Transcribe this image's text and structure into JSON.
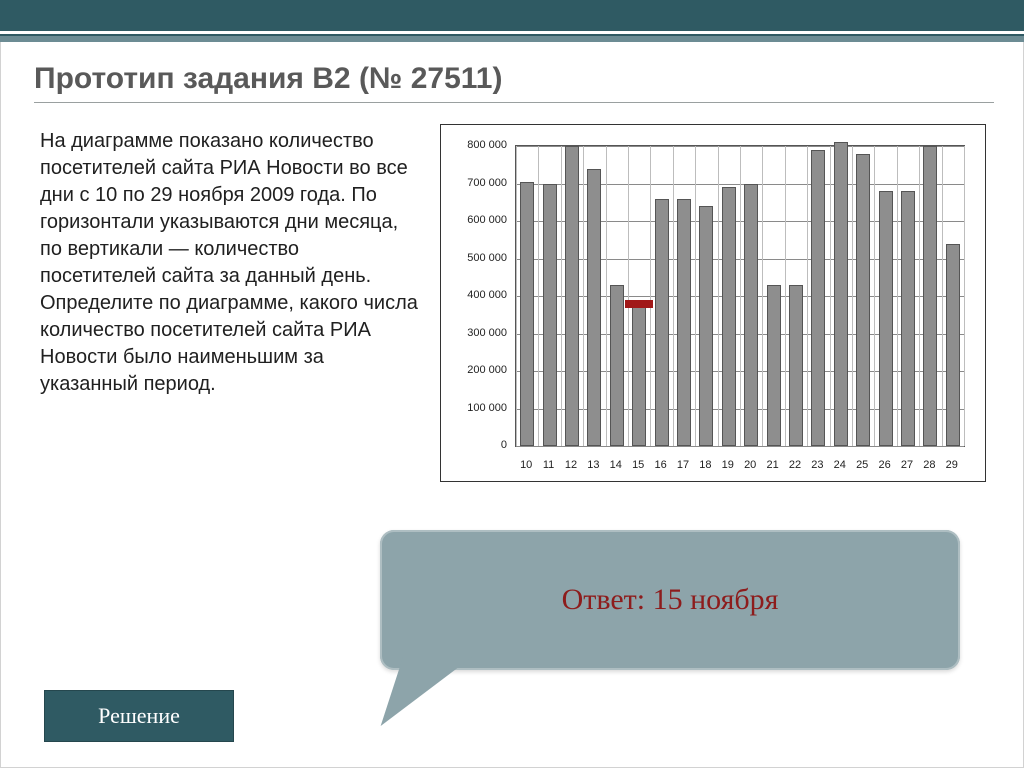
{
  "title": "Прототип задания B2 (№ 27511)",
  "paragraph": "На диаграмме показано количество посетителей сайта РИА Новости во все дни с 10 по 29 ноября 2009 года. По горизонтали указываются дни месяца, по вертикали — количество посетителей сайта за данный день. Определите по диаграмме, какого числа количество посетителей сайта РИА Новости было наименьшим за указанный период.",
  "answer_label": "Ответ: 15 ноября",
  "solution_button": "Решение",
  "chart": {
    "type": "bar",
    "ymin": 0,
    "ymax": 800000,
    "ytick_step": 100000,
    "yticks": [
      "0",
      "100 000",
      "200 000",
      "300 000",
      "400 000",
      "500 000",
      "600 000",
      "700 000",
      "800 000"
    ],
    "x_labels": [
      "10",
      "11",
      "12",
      "13",
      "14",
      "15",
      "16",
      "17",
      "18",
      "19",
      "20",
      "21",
      "22",
      "23",
      "24",
      "25",
      "26",
      "27",
      "28",
      "29"
    ],
    "values": [
      705000,
      700000,
      800000,
      740000,
      430000,
      390000,
      660000,
      660000,
      640000,
      690000,
      700000,
      430000,
      430000,
      790000,
      810000,
      780000,
      680000,
      680000,
      800000,
      540000
    ],
    "bar_fill": "#8e8e8e",
    "bar_border": "#555555",
    "grid_color": "#8a8a8a",
    "vgrid_color": "#bdbdbd",
    "background_color": "#ffffff",
    "bar_width_ratio": 0.62,
    "highlight": {
      "index": 5,
      "color": "#a11818"
    },
    "label_fontsize": 11
  },
  "colors": {
    "band": "#2f5a63",
    "band_mid": "#6c8c94",
    "title_text": "#595959",
    "answer_bg": "#8da4aa",
    "answer_text": "#8d1c1c"
  }
}
